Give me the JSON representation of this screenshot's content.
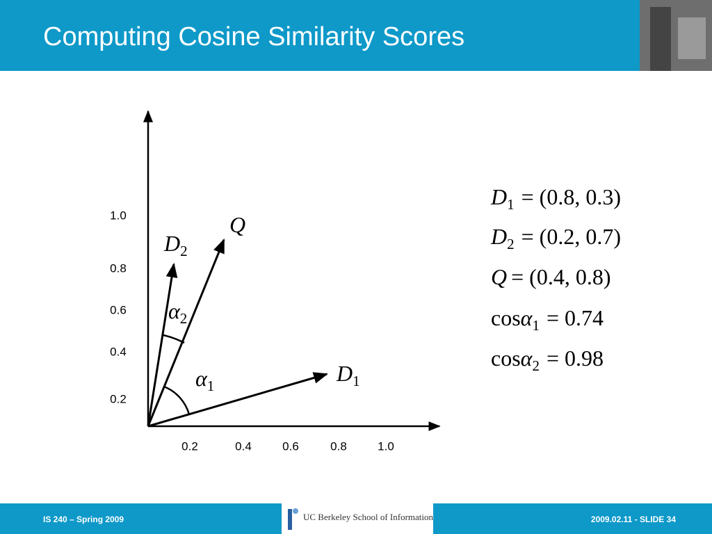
{
  "header": {
    "title": "Computing Cosine Similarity Scores"
  },
  "diagram": {
    "y_labels": [
      "1.0",
      "0.8",
      "0.6",
      "0.4",
      "0.2"
    ],
    "x_labels": [
      "0.2",
      "0.4",
      "0.6",
      "0.8",
      "1.0"
    ],
    "vectors": [
      {
        "symbol": "Q"
      },
      {
        "symbol": "D",
        "sub": "2"
      },
      {
        "symbol": "D",
        "sub": "1"
      }
    ],
    "angles": [
      {
        "symbol": "α",
        "sub": "1"
      },
      {
        "symbol": "α",
        "sub": "2"
      }
    ]
  },
  "equations": [
    {
      "symbol": "D",
      "sub": "1",
      "rhs": "= (0.8, 0.3)"
    },
    {
      "symbol": "D",
      "sub": "2",
      "rhs": "= (0.2, 0.7)"
    },
    {
      "symbol": "Q",
      "rhs": "= (0.4, 0.8)"
    },
    {
      "prefix": "cos",
      "symbol": "α",
      "sub": "1",
      "rhs": "= 0.74"
    },
    {
      "prefix": "cos",
      "symbol": "α",
      "sub": "2",
      "rhs": "= 0.98"
    }
  ],
  "footer": {
    "course": "IS 240 – Spring 2009",
    "logo": "UC Berkeley School of Information",
    "slide": "2009.02.11 - SLIDE 34"
  }
}
